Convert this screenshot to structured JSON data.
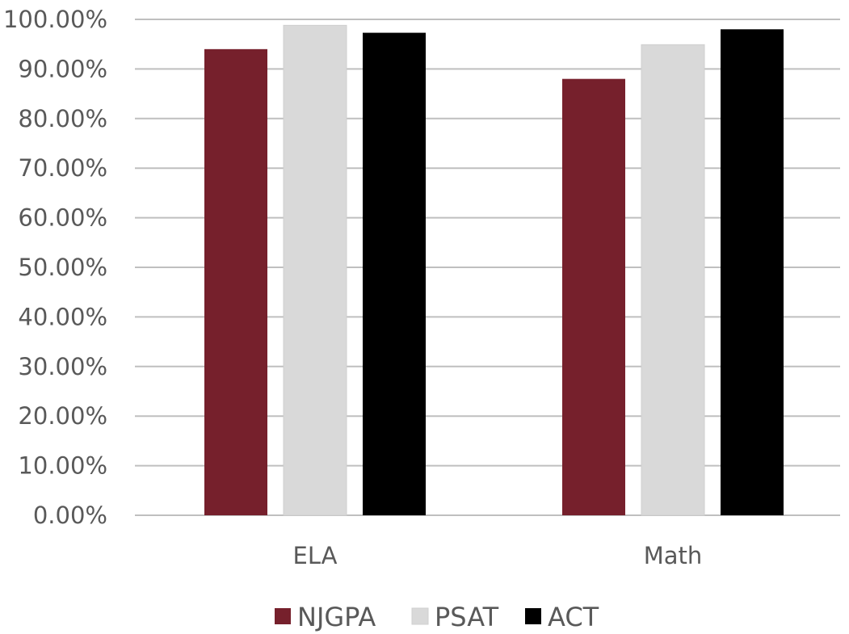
{
  "chart_data": {
    "type": "bar",
    "categories": [
      "ELA",
      "Math"
    ],
    "series": [
      {
        "name": "NJGPA",
        "values": [
          94.0,
          88.0
        ],
        "color": "#76202C"
      },
      {
        "name": "PSAT",
        "values": [
          98.8,
          94.9
        ],
        "color": "#D9D9D9"
      },
      {
        "name": "ACT",
        "values": [
          97.3,
          98.0
        ],
        "color": "#000000"
      }
    ],
    "y_ticks": [
      "0.00%",
      "10.00%",
      "20.00%",
      "30.00%",
      "40.00%",
      "50.00%",
      "60.00%",
      "70.00%",
      "80.00%",
      "90.00%",
      "100.00%"
    ],
    "ylim": [
      0,
      100
    ],
    "grid": true,
    "legend": "bottom",
    "title": "",
    "xlabel": "",
    "ylabel": ""
  }
}
